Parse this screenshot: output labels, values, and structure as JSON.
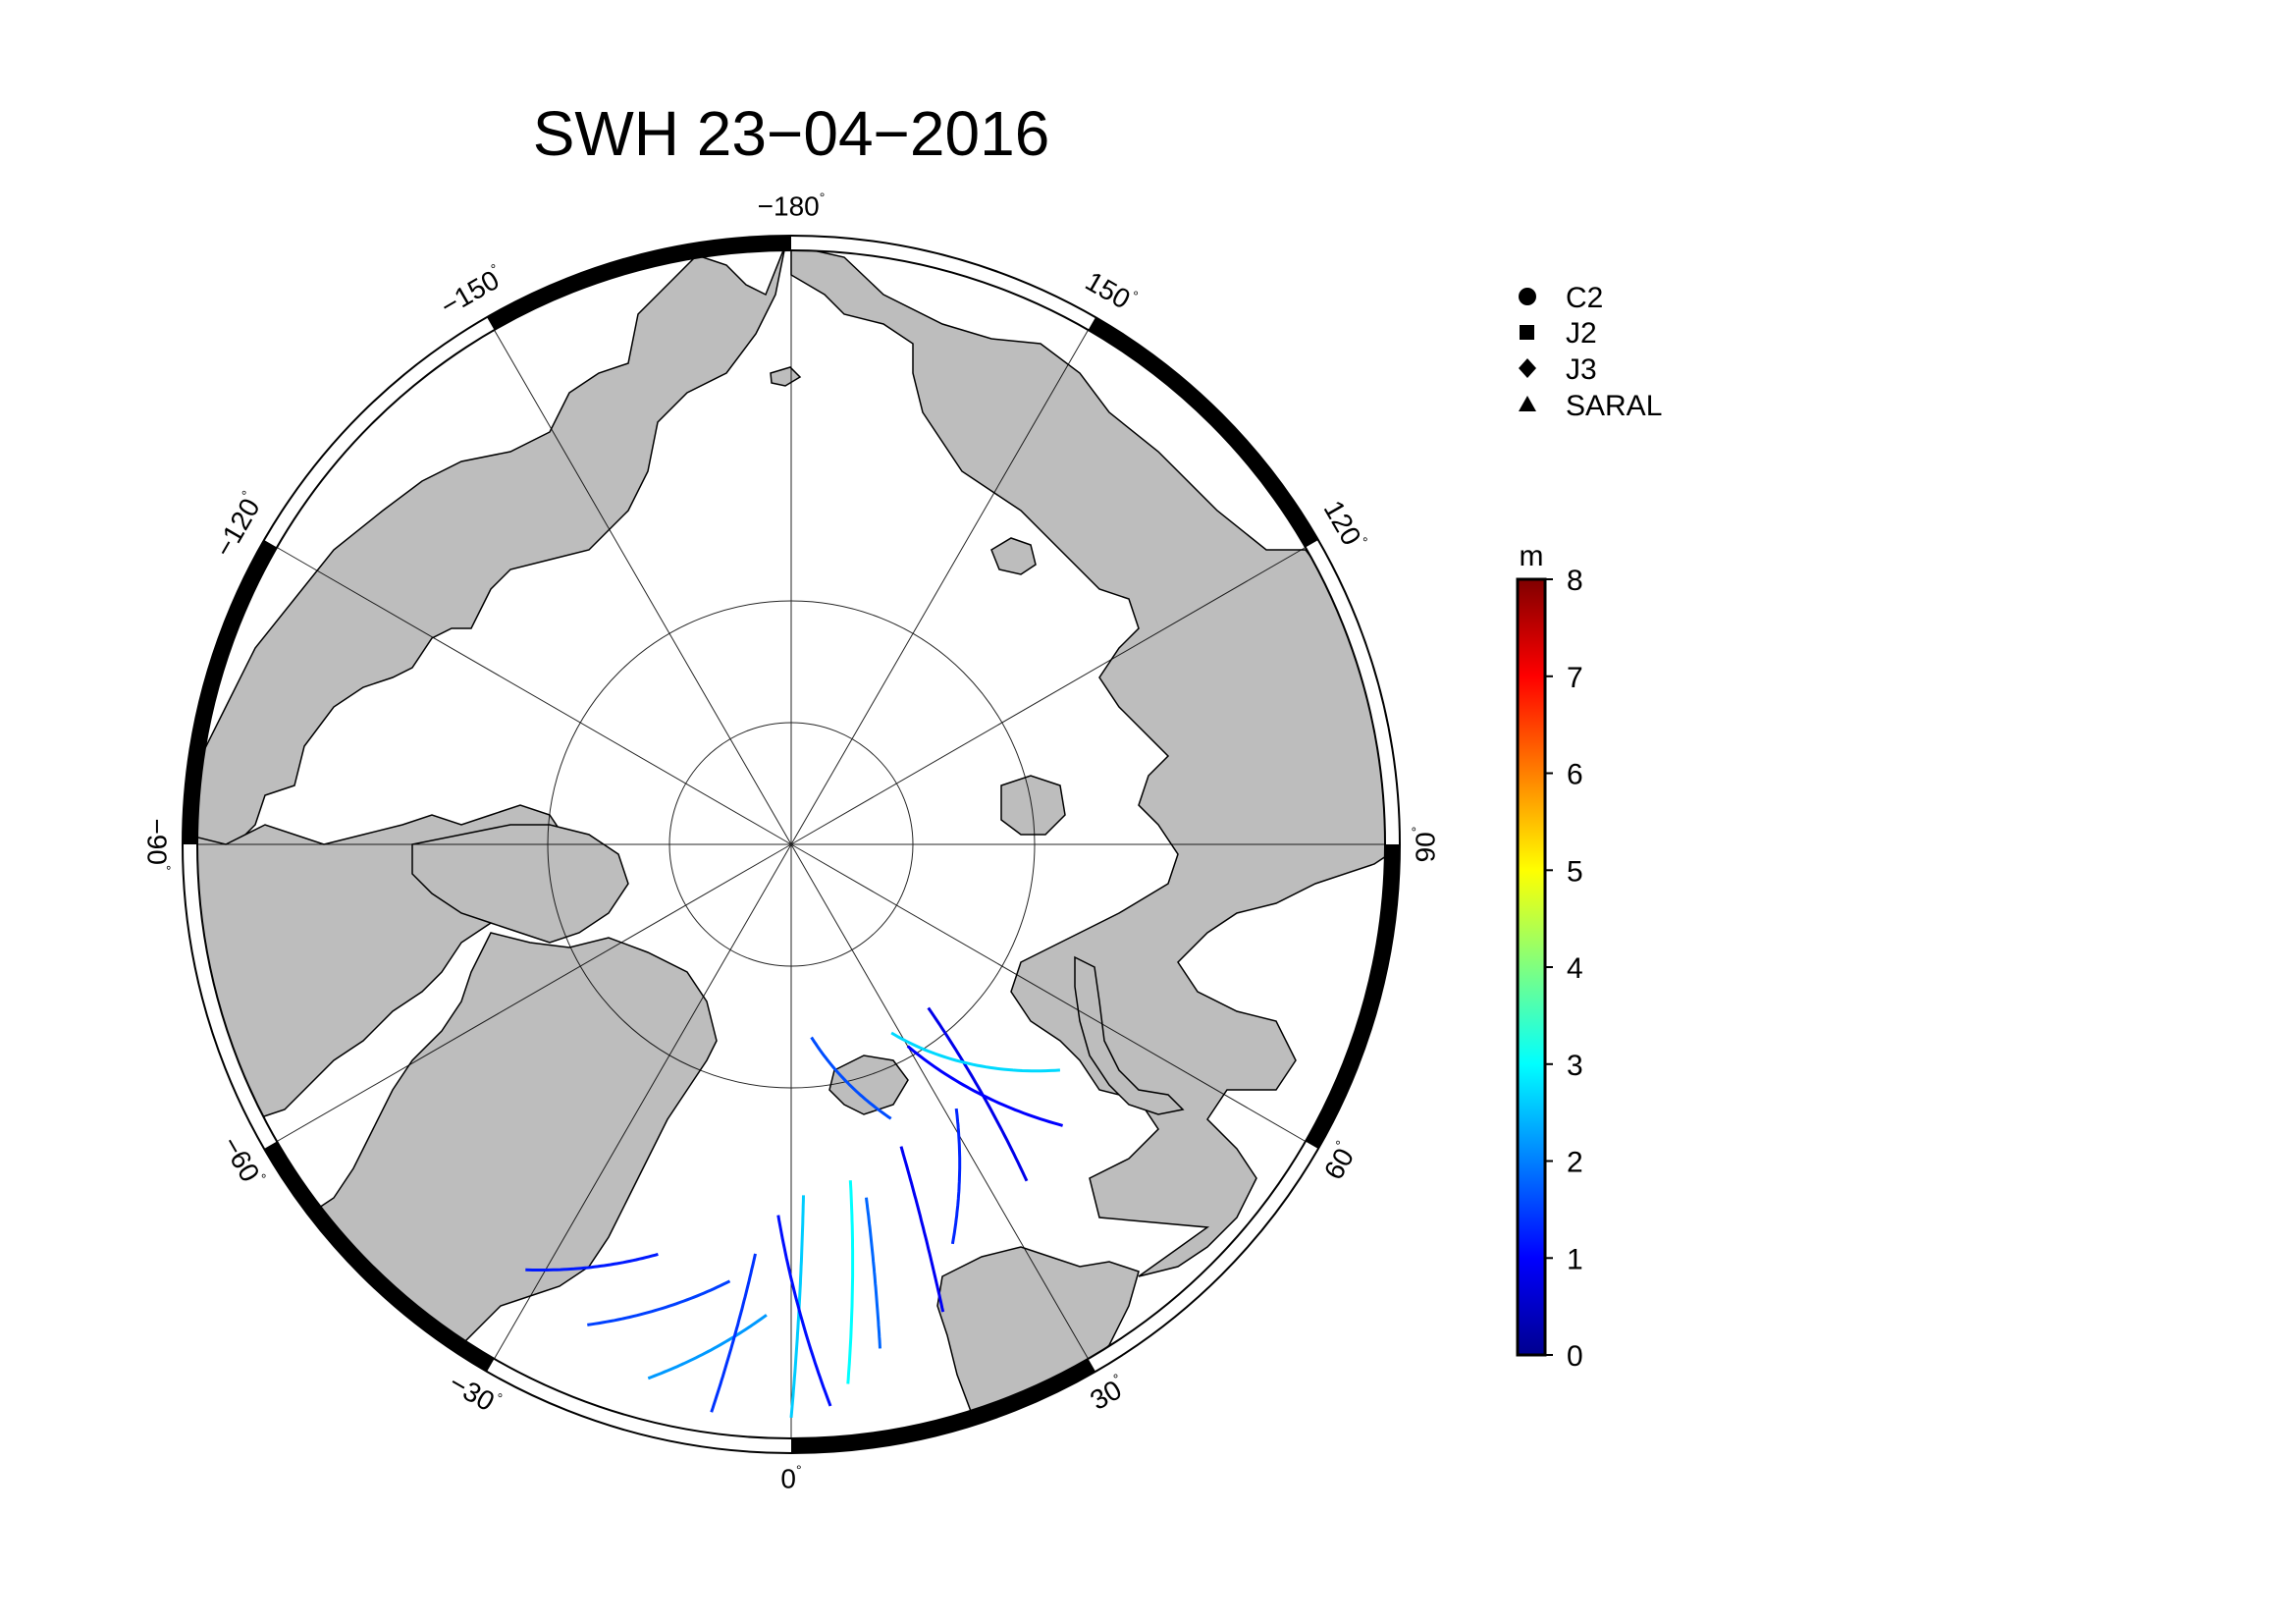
{
  "title": "SWH 23−04−2016",
  "map": {
    "projection": "north polar stereographic",
    "longitude_labels": [
      {
        "lon": 180,
        "text": "−180"
      },
      {
        "lon": 150,
        "text": "150"
      },
      {
        "lon": 120,
        "text": "120"
      },
      {
        "lon": 90,
        "text": "90"
      },
      {
        "lon": 60,
        "text": "60"
      },
      {
        "lon": 30,
        "text": "30"
      },
      {
        "lon": 0,
        "text": "0"
      },
      {
        "lon": -30,
        "text": "−30"
      },
      {
        "lon": -60,
        "text": "−60"
      },
      {
        "lon": -90,
        "text": "−90"
      },
      {
        "lon": -120,
        "text": "−120"
      },
      {
        "lon": -150,
        "text": "−150"
      }
    ],
    "degree_symbol": "°",
    "land_color": "#bdbdbd",
    "ocean_color": "#ffffff"
  },
  "legend": {
    "items": [
      {
        "symbol": "circle",
        "label": "C2"
      },
      {
        "symbol": "square",
        "label": "J2"
      },
      {
        "symbol": "diamond",
        "label": "J3"
      },
      {
        "symbol": "triangle",
        "label": "SARAL"
      }
    ]
  },
  "colorbar": {
    "unit": "m",
    "min": 0,
    "max": 8,
    "ticks": [
      "0",
      "1",
      "2",
      "3",
      "4",
      "5",
      "6",
      "7",
      "8"
    ],
    "colormap": "jet"
  },
  "chart_data": {
    "type": "scatter",
    "variable": "SWH",
    "unit": "m",
    "date": "23-04-2016",
    "colorscale_range": [
      0,
      8
    ],
    "tracks": [
      {
        "satellite": "C2",
        "from": [
          64.5,
          -32
        ],
        "to": [
          68.0,
          -18
        ],
        "swh": 1.2
      },
      {
        "satellite": "C2",
        "from": [
          63.5,
          -23
        ],
        "to": [
          67.5,
          -8
        ],
        "swh": 1.5
      },
      {
        "satellite": "J3",
        "from": [
          62.0,
          -15
        ],
        "to": [
          66.0,
          -3
        ],
        "swh": 2.2
      },
      {
        "satellite": "J2",
        "from": [
          61.0,
          -8
        ],
        "to": [
          69.0,
          -5
        ],
        "swh": 1.4
      },
      {
        "satellite": "SARAL",
        "from": [
          61.0,
          0
        ],
        "to": [
          72.0,
          2
        ],
        "swh": 2.6
      },
      {
        "satellite": "J3",
        "from": [
          61.5,
          4
        ],
        "to": [
          71.0,
          -2
        ],
        "swh": 1.1
      },
      {
        "satellite": "C2",
        "from": [
          62.5,
          6
        ],
        "to": [
          72.5,
          10
        ],
        "swh": 3.0
      },
      {
        "satellite": "J2",
        "from": [
          64.0,
          10
        ],
        "to": [
          71.5,
          12
        ],
        "swh": 1.8
      },
      {
        "satellite": "SARAL",
        "from": [
          65.0,
          18
        ],
        "to": [
          73.5,
          20
        ],
        "swh": 0.9
      },
      {
        "satellite": "J3",
        "from": [
          68.0,
          22
        ],
        "to": [
          74.0,
          32
        ],
        "swh": 1.3
      },
      {
        "satellite": "C2",
        "from": [
          69.0,
          35
        ],
        "to": [
          79.0,
          40
        ],
        "swh": 0.8
      },
      {
        "satellite": "J2",
        "from": [
          72.0,
          50
        ],
        "to": [
          79.0,
          28
        ],
        "swh": 2.7
      },
      {
        "satellite": "J3",
        "from": [
          70.0,
          44
        ],
        "to": [
          78.0,
          30
        ],
        "swh": 1.0
      },
      {
        "satellite": "SARAL",
        "from": [
          75.0,
          20
        ],
        "to": [
          80.0,
          6
        ],
        "swh": 1.6
      }
    ]
  }
}
